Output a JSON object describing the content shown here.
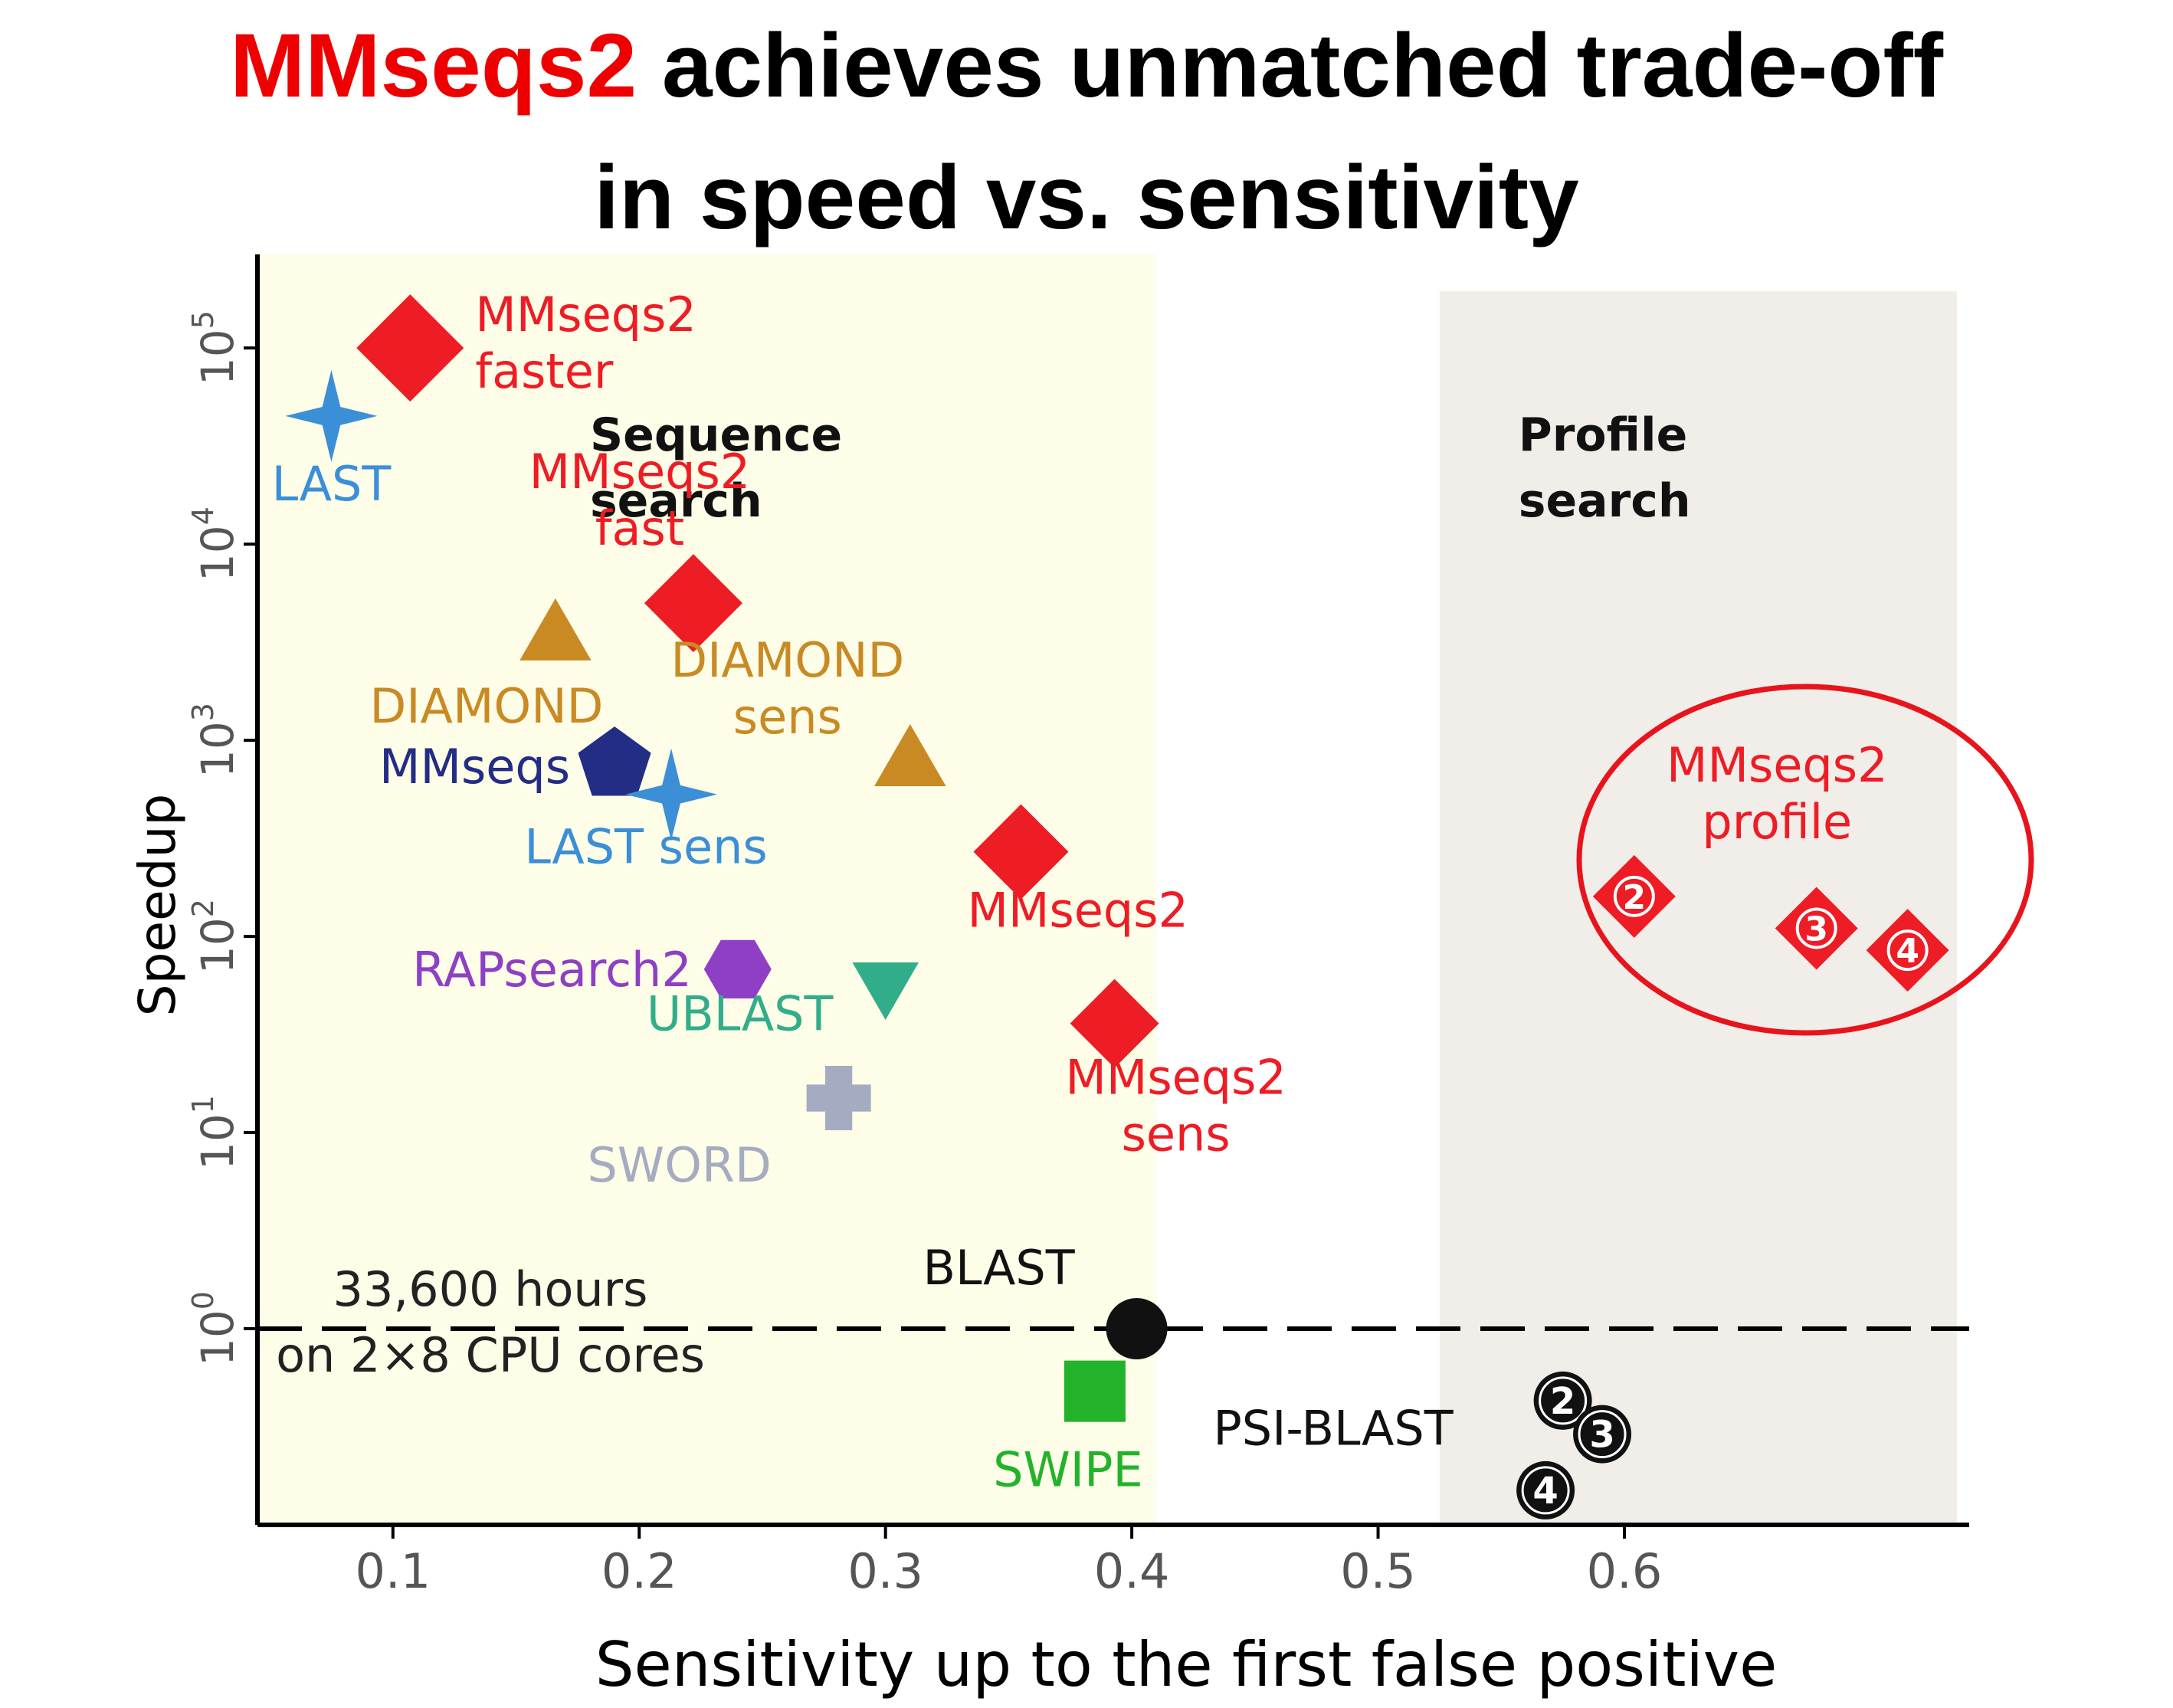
{
  "title": {
    "highlight": "MMseqs2",
    "line1_rest": " achieves unmatched trade-off",
    "line2": "in speed vs. sensitivity"
  },
  "chart_data": {
    "type": "scatter",
    "xlabel": "Sensitivity up to the first false positive",
    "ylabel": "Speedup",
    "yscale": "log",
    "xlim": [
      0.045,
      0.74
    ],
    "ylim": [
      0.1,
      300000
    ],
    "x_ticks": [
      {
        "value": 0.1,
        "label": "0.1"
      },
      {
        "value": 0.2,
        "label": "0.2"
      },
      {
        "value": 0.3,
        "label": "0.3"
      },
      {
        "value": 0.4,
        "label": "0.4"
      },
      {
        "value": 0.5,
        "label": "0.5"
      },
      {
        "value": 0.6,
        "label": "0.6"
      }
    ],
    "y_ticks": [
      {
        "value": 1,
        "base": "10",
        "exp": "0"
      },
      {
        "value": 10,
        "base": "10",
        "exp": "1"
      },
      {
        "value": 100,
        "base": "10",
        "exp": "2"
      },
      {
        "value": 1000,
        "base": "10",
        "exp": "3"
      },
      {
        "value": 10000,
        "base": "10",
        "exp": "4"
      },
      {
        "value": 100000,
        "base": "10",
        "exp": "5"
      }
    ],
    "regions": [
      {
        "label_lines": [
          "Sequence",
          "search"
        ],
        "x_start": 0.045,
        "x_end": 0.41,
        "color": "#fdfde8",
        "label_x": 0.18,
        "label_y": 30000
      },
      {
        "label_lines": [
          "Profile",
          "search"
        ],
        "x_start": 0.525,
        "x_end": 0.735,
        "color": "#f1ede9",
        "label_x": 0.557,
        "label_y": 30000
      }
    ],
    "reference_line": {
      "y": 1,
      "label_lines": [
        "33,600 hours",
        "on 2×8 CPU cores"
      ]
    },
    "colors": {
      "mmseqs2": "#ee1c24",
      "last": "#3b8fd6",
      "diamond": "#c98a24",
      "mmseqs": "#232d85",
      "rapsearch2": "#8e3fc3",
      "ublast": "#32ad8a",
      "sword": "#a5acc1",
      "blast": "#111111",
      "swipe": "#22b32a",
      "highlight_circle": "#e8141c"
    },
    "points": [
      {
        "name": "MMseqs2 faster",
        "label_lines": [
          "MMseqs2",
          "faster"
        ],
        "x": 0.107,
        "y": 100000,
        "shape": "diamond",
        "color": "#ee1c24",
        "size": 70
      },
      {
        "name": "LAST",
        "label_lines": [
          "LAST"
        ],
        "x": 0.075,
        "y": 45000,
        "shape": "star4",
        "color": "#3b8fd6",
        "size": 60
      },
      {
        "name": "MMseqs2 fast",
        "label_lines": [
          "MMseqs2",
          "fast"
        ],
        "x": 0.222,
        "y": 5000,
        "shape": "diamond",
        "color": "#ee1c24",
        "size": 64
      },
      {
        "name": "DIAMOND",
        "label_lines": [
          "DIAMOND"
        ],
        "x": 0.166,
        "y": 3500,
        "shape": "triangle-up",
        "color": "#c98a24",
        "size": 54
      },
      {
        "name": "DIAMOND sens",
        "label_lines": [
          "DIAMOND",
          "sens"
        ],
        "x": 0.31,
        "y": 800,
        "shape": "triangle-up",
        "color": "#c98a24",
        "size": 54
      },
      {
        "name": "MMseqs",
        "label_lines": [
          "MMseqs"
        ],
        "x": 0.19,
        "y": 750,
        "shape": "pentagon",
        "color": "#232d85",
        "size": 50
      },
      {
        "name": "LAST sens",
        "label_lines": [
          "LAST sens"
        ],
        "x": 0.213,
        "y": 530,
        "shape": "star4",
        "color": "#3b8fd6",
        "size": 60
      },
      {
        "name": "MMseqs2",
        "label_lines": [
          "MMseqs2"
        ],
        "x": 0.355,
        "y": 270,
        "shape": "diamond",
        "color": "#ee1c24",
        "size": 62
      },
      {
        "name": "RAPsearch2",
        "label_lines": [
          "RAPsearch2"
        ],
        "x": 0.24,
        "y": 68,
        "shape": "hexagon",
        "color": "#8e3fc3",
        "size": 44
      },
      {
        "name": "UBLAST",
        "label_lines": [
          "UBLAST"
        ],
        "x": 0.3,
        "y": 55,
        "shape": "triangle-down",
        "color": "#32ad8a",
        "size": 50
      },
      {
        "name": "MMseqs2 sens",
        "label_lines": [
          "MMseqs2",
          "sens"
        ],
        "x": 0.393,
        "y": 36,
        "shape": "diamond",
        "color": "#ee1c24",
        "size": 58
      },
      {
        "name": "SWORD",
        "label_lines": [
          "SWORD"
        ],
        "x": 0.281,
        "y": 15,
        "shape": "cross",
        "color": "#a5acc1",
        "size": 42
      },
      {
        "name": "BLAST",
        "label_lines": [
          "BLAST"
        ],
        "x": 0.402,
        "y": 1,
        "shape": "circle",
        "color": "#111111",
        "size": 40
      },
      {
        "name": "SWIPE",
        "label_lines": [
          "SWIPE"
        ],
        "x": 0.385,
        "y": 0.48,
        "shape": "square",
        "color": "#22b32a",
        "size": 40
      }
    ],
    "profile_series": {
      "name": "MMseqs2 profile",
      "label_lines": [
        "MMseqs2",
        "profile"
      ],
      "color": "#ee1c24",
      "points": [
        {
          "label": "2",
          "x": 0.604,
          "y": 160
        },
        {
          "label": "3",
          "x": 0.678,
          "y": 110
        },
        {
          "label": "4",
          "x": 0.715,
          "y": 85
        }
      ]
    },
    "psiblast_series": {
      "name": "PSI-BLAST",
      "label_lines": [
        "PSI-BLAST"
      ],
      "color": "#111111",
      "points": [
        {
          "label": "2",
          "x": 0.575,
          "y": 0.43
        },
        {
          "label": "3",
          "x": 0.591,
          "y": 0.29
        },
        {
          "label": "4",
          "x": 0.568,
          "y": 0.15
        }
      ]
    },
    "highlight": {
      "around": "MMseqs2 profile"
    }
  }
}
